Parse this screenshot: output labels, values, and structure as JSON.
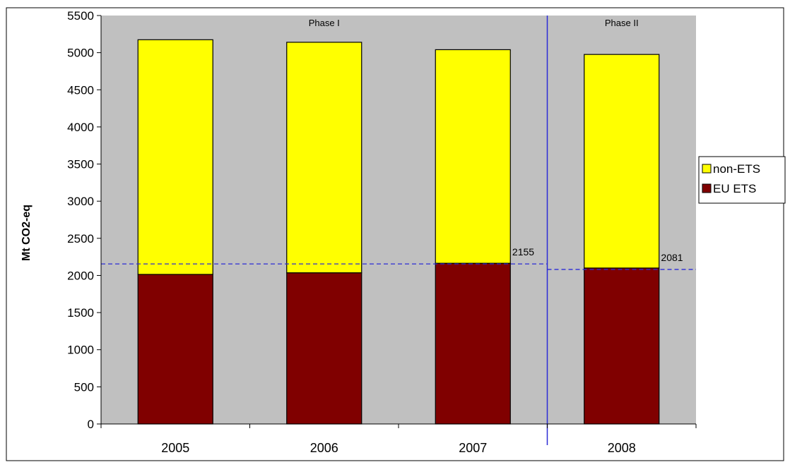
{
  "chart_data": {
    "type": "bar",
    "stacked": true,
    "categories": [
      "2005",
      "2006",
      "2007",
      "2008"
    ],
    "series": [
      {
        "name": "EU ETS",
        "color": "#800000",
        "values": [
          2014,
          2036,
          2164,
          2100
        ]
      },
      {
        "name": "non-ETS",
        "color": "#ffff00",
        "values": [
          3160,
          3104,
          2876,
          2876
        ]
      }
    ],
    "ylabel": "Mt CO2-eq",
    "xlabel": "",
    "title": "",
    "ylim": [
      0,
      5500
    ],
    "yticks": [
      0,
      500,
      1000,
      1500,
      2000,
      2500,
      3000,
      3500,
      4000,
      4500,
      5000,
      5500
    ],
    "grid": false,
    "plot_background": "#c0c0c0",
    "legend_position": "right",
    "phases": [
      {
        "label": "Phase I",
        "start": 2005,
        "end": 2007
      },
      {
        "label": "Phase II",
        "start": 2008,
        "end": 2008
      }
    ],
    "phase_divider_color": "#2b2bd6",
    "reference_lines": [
      {
        "value": 2155,
        "label": "2155",
        "from_category": 0,
        "to_category": 2,
        "color": "#2b2bd6",
        "style": "dashed"
      },
      {
        "value": 2081,
        "label": "2081",
        "from_category": 3,
        "to_category": 3,
        "color": "#2b2bd6",
        "style": "dashed"
      }
    ]
  }
}
